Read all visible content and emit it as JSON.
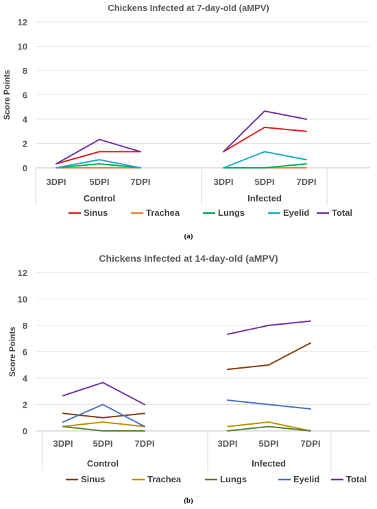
{
  "chart_data": [
    {
      "type": "line",
      "title": "Chickens Infected at 7-day-old (aMPV)",
      "panel_label": "(a)",
      "ylabel": "Score Points",
      "ylim": [
        0,
        12
      ],
      "yticks": [
        "0",
        "2",
        "4",
        "6",
        "8",
        "10",
        "12"
      ],
      "groups": [
        {
          "name": "Control",
          "categories": [
            "3DPI",
            "5DPI",
            "7DPI"
          ]
        },
        {
          "name": "Infected",
          "categories": [
            "3DPI",
            "5DPI",
            "7DPI"
          ]
        }
      ],
      "legend_position": "bottom",
      "grid": true,
      "series": [
        {
          "name": "Sinus",
          "color": "#e31a1c",
          "values": [
            [
              0.33,
              1.33,
              1.33
            ],
            [
              1.33,
              3.33,
              3.0
            ]
          ]
        },
        {
          "name": "Trachea",
          "color": "#ed7d31",
          "values": [
            [
              0.0,
              0.0,
              0.0
            ],
            [
              0.0,
              0.0,
              0.0
            ]
          ]
        },
        {
          "name": "Lungs",
          "color": "#00a65a",
          "values": [
            [
              0.0,
              0.33,
              0.0
            ],
            [
              0.0,
              0.0,
              0.33
            ]
          ]
        },
        {
          "name": "Eyelid",
          "color": "#17a9c6",
          "values": [
            [
              0.0,
              0.67,
              0.0
            ],
            [
              0.0,
              1.33,
              0.67
            ]
          ]
        },
        {
          "name": "Total",
          "color": "#7030a0",
          "values": [
            [
              0.33,
              2.33,
              1.33
            ],
            [
              1.33,
              4.67,
              4.0
            ]
          ]
        }
      ]
    },
    {
      "type": "line",
      "title": "Chickens Infected at 14-day-old (aMPV)",
      "panel_label": "(b)",
      "ylabel": "Score Points",
      "ylim": [
        0,
        12
      ],
      "yticks": [
        "0",
        "2",
        "4",
        "6",
        "8",
        "10",
        "12"
      ],
      "groups": [
        {
          "name": "Control",
          "categories": [
            "3DPI",
            "5DPI",
            "7DPI"
          ]
        },
        {
          "name": "Infected",
          "categories": [
            "3DPI",
            "5DPI",
            "7DPI"
          ]
        }
      ],
      "legend_position": "bottom",
      "grid": true,
      "series": [
        {
          "name": "Sinus",
          "color": "#843c0c",
          "values": [
            [
              1.33,
              1.0,
              1.33
            ],
            [
              4.67,
              5.0,
              6.67
            ]
          ]
        },
        {
          "name": "Trachea",
          "color": "#bf9000",
          "values": [
            [
              0.33,
              0.67,
              0.33
            ],
            [
              0.33,
              0.67,
              0.0
            ]
          ]
        },
        {
          "name": "Lungs",
          "color": "#548235",
          "values": [
            [
              0.33,
              0.0,
              0.0
            ],
            [
              0.0,
              0.33,
              0.0
            ]
          ]
        },
        {
          "name": "Eyelid",
          "color": "#4472c4",
          "values": [
            [
              0.67,
              2.0,
              0.33
            ],
            [
              2.33,
              2.0,
              1.67
            ]
          ]
        },
        {
          "name": "Total",
          "color": "#7030a0",
          "values": [
            [
              2.67,
              3.67,
              2.0
            ],
            [
              7.33,
              8.0,
              8.33
            ]
          ]
        }
      ]
    }
  ]
}
